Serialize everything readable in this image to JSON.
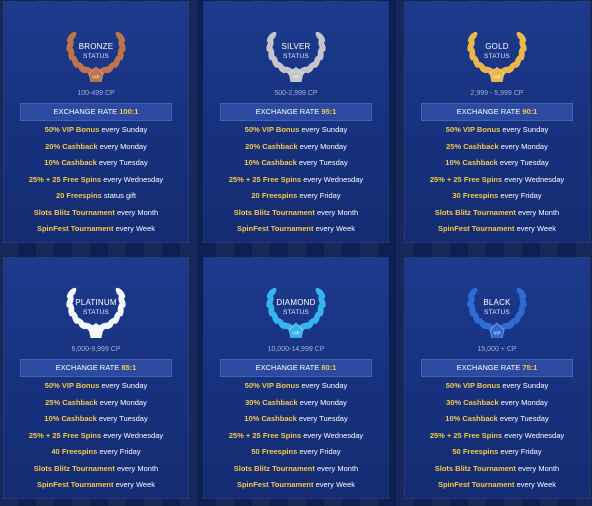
{
  "vip_label": "VIP",
  "status_label": "STATUS",
  "exchange_label": "EXCHANGE RATE",
  "tiers": [
    {
      "name": "BRONZE",
      "cp": "100-499 CP",
      "rate": "100:1",
      "color": "#c0734a",
      "perks": [
        {
          "hl": "50% VIP Bonus",
          "rest": " every Sunday"
        },
        {
          "hl": "20% Cashback",
          "rest": " every Monday"
        },
        {
          "hl": "10% Cashback",
          "rest": " every Tuesday"
        },
        {
          "hl": "25% + 25 Free Spins",
          "rest": " every Wednesday"
        },
        {
          "hl": "20 Freespins",
          "rest": " status gift"
        },
        {
          "hl": "Slots Blitz Tournament",
          "rest": " every Month"
        },
        {
          "hl": "SpinFest Tournament",
          "rest": " every Week"
        }
      ]
    },
    {
      "name": "SILVER",
      "cp": "500-2,999 CP",
      "rate": "95:1",
      "color": "#c4c6cc",
      "perks": [
        {
          "hl": "50% VIP Bonus",
          "rest": " every Sunday"
        },
        {
          "hl": "20% Cashback",
          "rest": " every Monday"
        },
        {
          "hl": "10% Cashback",
          "rest": " every Tuesday"
        },
        {
          "hl": "25% + 25 Free Spins",
          "rest": " every Wednesday"
        },
        {
          "hl": "20 Freespins",
          "rest": " every Friday"
        },
        {
          "hl": "Slots Blitz Tournament",
          "rest": " every Month"
        },
        {
          "hl": "SpinFest Tournament",
          "rest": " every Week"
        }
      ]
    },
    {
      "name": "GOLD",
      "cp": "2,999 - 5,999 CP",
      "rate": "90:1",
      "color": "#e8b94a",
      "perks": [
        {
          "hl": "50% VIP Bonus",
          "rest": " every Sunday"
        },
        {
          "hl": "25% Cashback",
          "rest": " every Monday"
        },
        {
          "hl": "10% Cashback",
          "rest": " every Tuesday"
        },
        {
          "hl": "25% + 25 Free Spins",
          "rest": " every Wednesday"
        },
        {
          "hl": "30 Freespins",
          "rest": " every Friday"
        },
        {
          "hl": "Slots Blitz Tournament",
          "rest": " every Month"
        },
        {
          "hl": "SpinFest Tournament",
          "rest": " every Week"
        }
      ]
    },
    {
      "name": "PLATINUM",
      "cp": "6,000-9,999 CP",
      "rate": "85:1",
      "color": "#f4f6fb",
      "perks": [
        {
          "hl": "50% VIP Bonus",
          "rest": " every Sunday"
        },
        {
          "hl": "25% Cashback",
          "rest": " every Monday"
        },
        {
          "hl": "10% Cashback",
          "rest": " every Tuesday"
        },
        {
          "hl": "25% + 25 Free Spins",
          "rest": " every Wednesday"
        },
        {
          "hl": "40 Freespins",
          "rest": " every Friday"
        },
        {
          "hl": "Slots Blitz Tournament",
          "rest": " every Month"
        },
        {
          "hl": "SpinFest Tournament",
          "rest": " every Week"
        }
      ]
    },
    {
      "name": "DIAMOND",
      "cp": "10,000-14,999 CP",
      "rate": "80:1",
      "color": "#35b4ee",
      "perks": [
        {
          "hl": "50% VIP Bonus",
          "rest": " every Sunday"
        },
        {
          "hl": "30% Cashback",
          "rest": " every Monday"
        },
        {
          "hl": "10% Cashback",
          "rest": " every Tuesday"
        },
        {
          "hl": "25% + 25 Free Spins",
          "rest": " every Wednesday"
        },
        {
          "hl": "50 Freespins",
          "rest": " every Friday"
        },
        {
          "hl": "Slots Blitz Tournament",
          "rest": " every Month"
        },
        {
          "hl": "SpinFest Tournament",
          "rest": " every Week"
        }
      ]
    },
    {
      "name": "BLACK",
      "cp": "15,000 + CP",
      "rate": "75:1",
      "color": "#2f6bd6",
      "perks": [
        {
          "hl": "50% VIP Bonus",
          "rest": " every Sunday"
        },
        {
          "hl": "30% Cashback",
          "rest": " every Monday"
        },
        {
          "hl": "10% Cashback",
          "rest": " every Tuesday"
        },
        {
          "hl": "25% + 25 Free Spins",
          "rest": " every Wednesday"
        },
        {
          "hl": "50 Freespins",
          "rest": " every Friday"
        },
        {
          "hl": "Slots Blitz Tournament",
          "rest": " every Month"
        },
        {
          "hl": "SpinFest Tournament",
          "rest": " every Week"
        }
      ]
    }
  ]
}
